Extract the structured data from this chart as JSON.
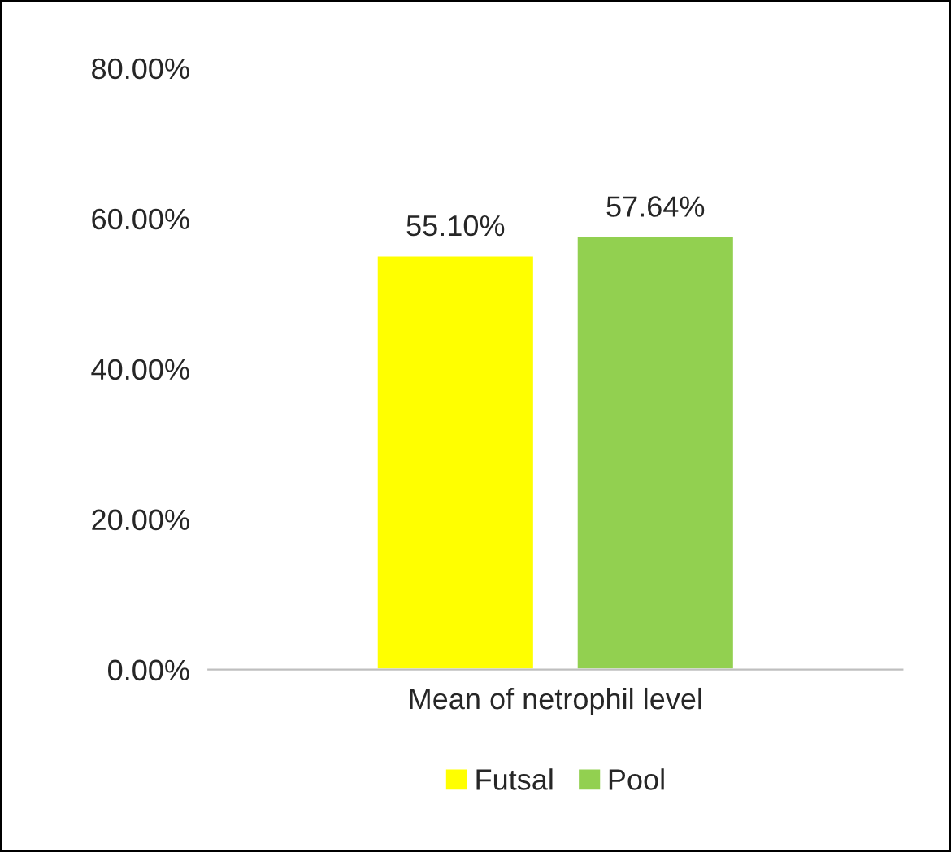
{
  "chart_data": {
    "type": "bar",
    "categories": [
      "Mean of netrophil level"
    ],
    "series": [
      {
        "name": "Futsal",
        "color": "#ffff00",
        "values": [
          55.1
        ],
        "value_labels": [
          "55.10%"
        ]
      },
      {
        "name": "Pool",
        "color": "#92d050",
        "values": [
          57.64
        ],
        "value_labels": [
          "57.64%"
        ]
      }
    ],
    "ylim": [
      0,
      80
    ],
    "yticks": [
      {
        "value": 0,
        "label": "0.00%"
      },
      {
        "value": 20,
        "label": "20.00%"
      },
      {
        "value": 40,
        "label": "40.00%"
      },
      {
        "value": 60,
        "label": "60.00%"
      },
      {
        "value": 80,
        "label": "80.00%"
      }
    ],
    "grid": false,
    "legend": "bottom"
  }
}
